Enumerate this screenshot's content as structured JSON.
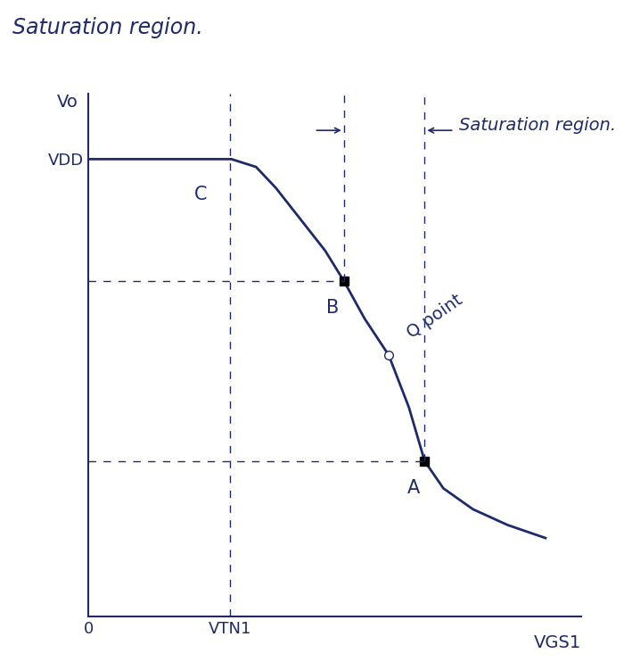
{
  "chart_data": {
    "type": "line",
    "title": "Saturation region.",
    "x_label": "VGS1",
    "y_label": "Vo",
    "x": [
      0,
      1,
      2,
      2.9,
      3.4,
      3.8,
      4.3,
      4.8,
      5.18,
      5.6,
      6.09,
      6.5,
      6.82,
      7.2,
      7.8,
      8.5,
      9.27
    ],
    "values": [
      8.75,
      8.75,
      8.75,
      8.75,
      8.6,
      8.2,
      7.6,
      7.0,
      6.42,
      5.7,
      5.0,
      4.0,
      2.97,
      2.45,
      2.05,
      1.75,
      1.5
    ],
    "color": "#1f2a6b",
    "xlim": [
      0,
      10
    ],
    "ylim": [
      0,
      10
    ],
    "xticks": [
      {
        "value": 0,
        "label": "0"
      },
      {
        "value": 2.87,
        "label": "VTN1"
      }
    ],
    "yticks": [
      {
        "value": 8.75,
        "label": "VDD"
      }
    ],
    "points": [
      {
        "label": "B",
        "x": 5.18,
        "y": 6.42
      },
      {
        "label": "Q point",
        "x": 6.09,
        "y": 5.0
      },
      {
        "label": "A",
        "x": 6.82,
        "y": 2.97
      }
    ],
    "annotations": [
      {
        "text": "C",
        "x": 2.27,
        "y": 8.08
      },
      {
        "text": "Saturation region.",
        "x_from": 5.18,
        "x_to": 6.82
      }
    ]
  }
}
